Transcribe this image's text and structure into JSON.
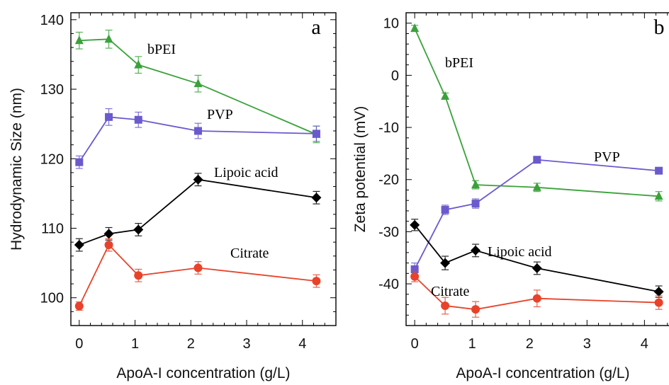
{
  "chart_data": [
    {
      "type": "line",
      "panel_letter": "a",
      "xlabel": "ApoA-I concentration (g/L)",
      "ylabel": "Hydrodynamic Size (nm)",
      "xlim": [
        -0.15,
        4.6
      ],
      "ylim": [
        96,
        141
      ],
      "xticks": [
        0,
        1,
        2,
        3,
        4
      ],
      "yticks": [
        100,
        110,
        120,
        130,
        140
      ],
      "grid": false,
      "x": [
        0,
        0.53,
        1.06,
        2.13,
        4.25
      ],
      "series": [
        {
          "name": "bPEI",
          "color": "#3aa23a",
          "marker": "triangle",
          "values": [
            137.0,
            137.2,
            133.5,
            130.8,
            123.5
          ],
          "errors": [
            1.2,
            1.3,
            1.2,
            1.2,
            1.2
          ]
        },
        {
          "name": "PVP",
          "color": "#6a5acd",
          "marker": "square",
          "values": [
            119.5,
            126.0,
            125.6,
            124.0,
            123.6
          ],
          "errors": [
            0.9,
            1.2,
            1.1,
            1.1,
            1.1
          ]
        },
        {
          "name": "Lipoic acid",
          "color": "#000000",
          "marker": "diamond",
          "values": [
            107.6,
            109.2,
            109.8,
            117.0,
            114.4
          ],
          "errors": [
            0.9,
            0.9,
            0.9,
            0.9,
            0.9
          ]
        },
        {
          "name": "Citrate",
          "color": "#e8432a",
          "marker": "circle",
          "values": [
            98.8,
            107.6,
            103.2,
            104.3,
            102.4
          ],
          "errors": [
            0.6,
            0.9,
            0.9,
            0.9,
            0.9
          ]
        }
      ]
    },
    {
      "type": "line",
      "panel_letter": "b",
      "xlabel": "ApoA-I concentration (g/L)",
      "ylabel": "Zeta potential (mV)",
      "xlim": [
        -0.15,
        4.6
      ],
      "ylim": [
        -48,
        12
      ],
      "xticks": [
        0,
        1,
        2,
        3,
        4
      ],
      "yticks": [
        10,
        0,
        -10,
        -20,
        -30,
        -40
      ],
      "grid": false,
      "x": [
        0,
        0.53,
        1.06,
        2.13,
        4.25
      ],
      "series": [
        {
          "name": "bPEI",
          "color": "#3aa23a",
          "marker": "triangle",
          "values": [
            9.0,
            -4.0,
            -21.0,
            -21.5,
            -23.2
          ],
          "errors": [
            0.6,
            0.6,
            0.8,
            0.8,
            0.9
          ]
        },
        {
          "name": "PVP",
          "color": "#6a5acd",
          "marker": "square",
          "values": [
            -37.2,
            -25.8,
            -24.6,
            -16.2,
            -18.3
          ],
          "errors": [
            1.2,
            0.9,
            0.9,
            0.6,
            0.6
          ]
        },
        {
          "name": "Lipoic acid",
          "color": "#000000",
          "marker": "diamond",
          "values": [
            -28.7,
            -36.0,
            -33.6,
            -37.0,
            -41.5
          ],
          "errors": [
            1.1,
            1.3,
            1.2,
            1.2,
            1.1
          ]
        },
        {
          "name": "Citrate",
          "color": "#e8432a",
          "marker": "circle",
          "values": [
            -38.6,
            -44.2,
            -44.9,
            -42.8,
            -43.6
          ],
          "errors": [
            1.0,
            1.6,
            1.5,
            1.6,
            1.3
          ]
        }
      ]
    }
  ]
}
